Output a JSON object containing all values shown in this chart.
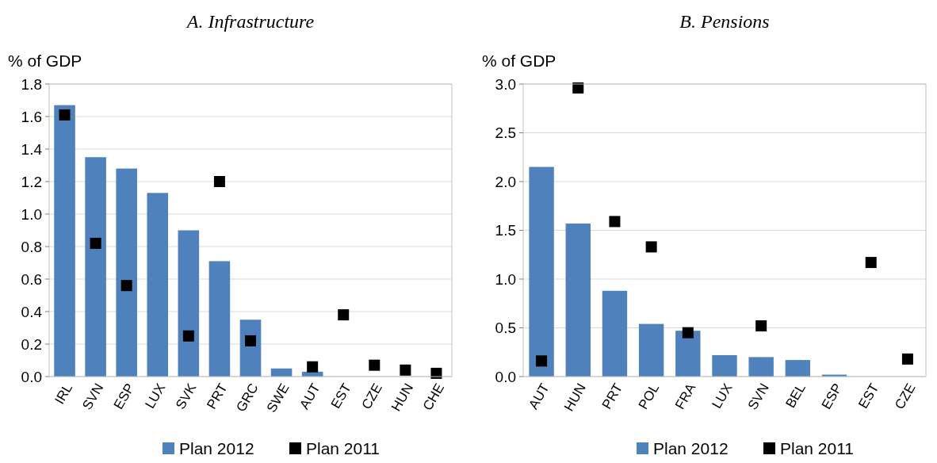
{
  "chart_data": [
    {
      "type": "bar",
      "title": "A. Infrastructure",
      "ylabel": "% of GDP",
      "categories": [
        "IRL",
        "SVN",
        "ESP",
        "LUX",
        "SVK",
        "PRT",
        "GRC",
        "SWE",
        "AUT",
        "EST",
        "CZE",
        "HUN",
        "CHE"
      ],
      "ylim": [
        0,
        1.8
      ],
      "yticks": [
        {
          "value": 0,
          "label": "0.0"
        },
        {
          "value": 0.2,
          "label": "0.2"
        },
        {
          "value": 0.4,
          "label": "0.4"
        },
        {
          "value": 0.6,
          "label": "0.6"
        },
        {
          "value": 0.8,
          "label": "0.8"
        },
        {
          "value": 1,
          "label": "1.0"
        },
        {
          "value": 1.2,
          "label": "1.2"
        },
        {
          "value": 1.4,
          "label": "1.4"
        },
        {
          "value": 1.6,
          "label": "1.6"
        },
        {
          "value": 1.8,
          "label": "1.8"
        }
      ],
      "grid": "y",
      "legend": "bottom",
      "series": [
        {
          "name": "Plan 2012",
          "color": "#4f81bd",
          "values": [
            1.67,
            1.35,
            1.28,
            1.13,
            0.9,
            0.71,
            0.35,
            0.05,
            0.03,
            null,
            null,
            null,
            null
          ]
        },
        {
          "name": "Plan 2011",
          "type": "scatter",
          "marker": "square",
          "color": "#000000",
          "values": [
            1.61,
            0.82,
            0.56,
            null,
            0.25,
            1.2,
            0.22,
            null,
            0.06,
            0.38,
            0.07,
            0.04,
            0.02
          ]
        }
      ]
    },
    {
      "type": "bar",
      "title": "B. Pensions",
      "ylabel": "% of GDP",
      "categories": [
        "AUT",
        "HUN",
        "PRT",
        "POL",
        "FRA",
        "LUX",
        "SVN",
        "BEL",
        "ESP",
        "EST",
        "CZE"
      ],
      "ylim": [
        0,
        3
      ],
      "yticks": [
        {
          "value": 0,
          "label": "0.0"
        },
        {
          "value": 0.5,
          "label": "0.5"
        },
        {
          "value": 1,
          "label": "1.0"
        },
        {
          "value": 1.5,
          "label": "1.5"
        },
        {
          "value": 2,
          "label": "2.0"
        },
        {
          "value": 2.5,
          "label": "2.5"
        },
        {
          "value": 3,
          "label": "3.0"
        }
      ],
      "grid": "y",
      "legend": "bottom",
      "series": [
        {
          "name": "Plan 2012",
          "color": "#4f81bd",
          "values": [
            2.15,
            1.57,
            0.88,
            0.54,
            0.47,
            0.22,
            0.2,
            0.17,
            0.02,
            null,
            null
          ]
        },
        {
          "name": "Plan 2011",
          "type": "scatter",
          "marker": "square",
          "color": "#000000",
          "values": [
            0.16,
            2.96,
            1.59,
            1.33,
            0.45,
            null,
            0.52,
            null,
            null,
            1.17,
            0.18
          ]
        }
      ]
    }
  ]
}
